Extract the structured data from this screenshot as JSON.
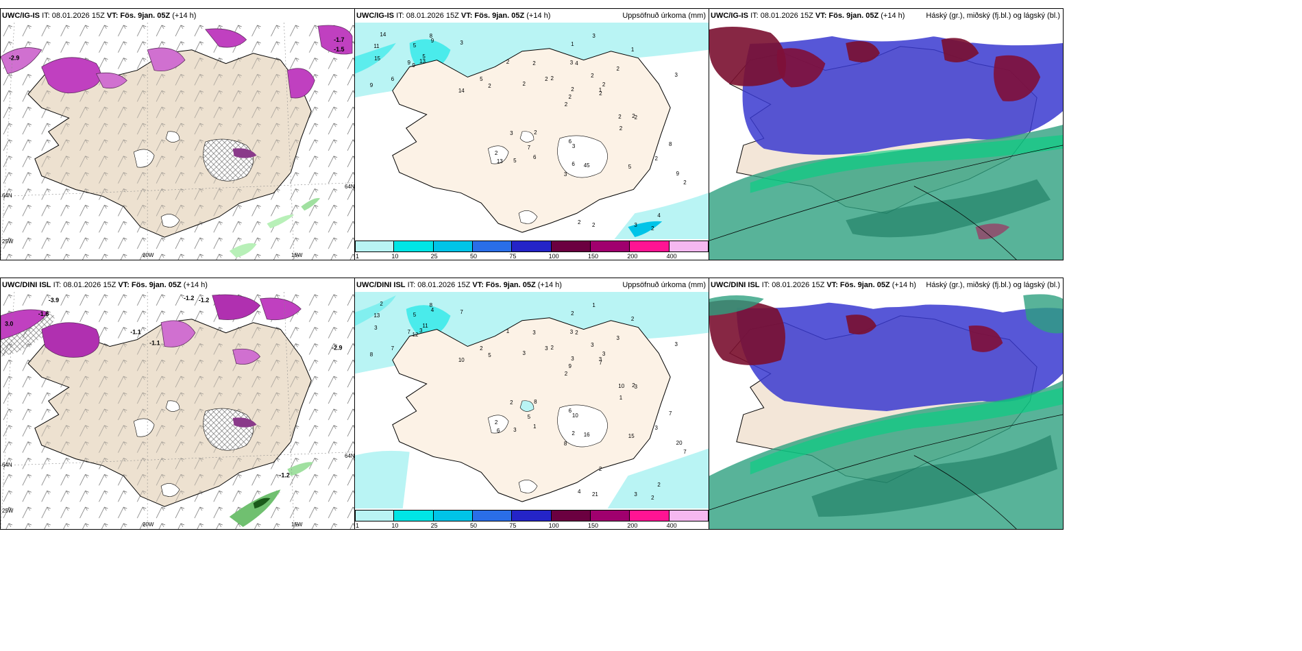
{
  "rows": [
    {
      "model": "UWC/IG-IS",
      "it_label": "IT: 08.01.2026 15Z",
      "vt_label": "VT: Fös. 9jan. 05Z",
      "lead": "(+14 h)",
      "map_labels": {
        "lon_20w": "20W",
        "lon_15w": "15W",
        "lon_25w": "25W",
        "lat_64n_left": "64N",
        "lat_64n_right": "64N"
      },
      "precip_numbers": [
        "9",
        "11",
        "9",
        "9",
        "5",
        "6",
        "8",
        "5",
        "9",
        "13",
        "14",
        "14",
        "15",
        "3",
        "2",
        "2",
        "5",
        "3",
        "2",
        "3",
        "2",
        "2",
        "7",
        "4",
        "2",
        "2",
        "2",
        "1",
        "2",
        "2",
        "3",
        "2",
        "6",
        "2",
        "2",
        "1",
        "2",
        "2",
        "8",
        "2",
        "3",
        "2",
        "2",
        "2",
        "6",
        "5",
        "1",
        "13",
        "3",
        "2",
        "2",
        "2",
        "3",
        "4",
        "2",
        "2",
        "45",
        "6",
        "3",
        "9",
        "5"
      ]
    },
    {
      "model": "UWC/DINI ISL",
      "it_label": "IT: 08.01.2026 15Z",
      "vt_label": "VT: Fös. 9jan. 05Z",
      "lead": "(+14 h)",
      "map_labels": {
        "lon_20w": "20W",
        "lon_15w": "15W",
        "lon_25w": "25W",
        "lat_64n_left": "64N",
        "lat_64n_right": "64N"
      },
      "precip_numbers": [
        "12",
        "13",
        "7",
        "8",
        "11",
        "7",
        "8",
        "5",
        "4",
        "3",
        "2",
        "10",
        "3",
        "7",
        "2",
        "3",
        "3",
        "3",
        "3",
        "2",
        "2",
        "2",
        "5",
        "2",
        "3",
        "3",
        "1",
        "2",
        "5",
        "10",
        "3",
        "9",
        "6",
        "3",
        "3",
        "2",
        "8",
        "3",
        "7",
        "2",
        "1",
        "3",
        "3",
        "1",
        "1",
        "2",
        "3",
        "6",
        "10",
        "7",
        "4",
        "7",
        "8",
        "2",
        "2",
        "21",
        "16",
        "2",
        "3",
        "20",
        "15",
        "2"
      ]
    }
  ],
  "precip_title": "Uppsöfnuð úrkoma (mm)",
  "cloud_title": "Háský (gr.), miðský (fj.bl.) og lágský (bl.)",
  "colorbar": {
    "labels": [
      "1",
      "10",
      "25",
      "50",
      "75",
      "100",
      "150",
      "200",
      "400"
    ],
    "colors": [
      "#b9f4f4",
      "#00e5e5",
      "#00c4e8",
      "#2a6ee8",
      "#2424c8",
      "#6b0040",
      "#a0006e",
      "#ff1493",
      "#f5b8f0"
    ]
  },
  "temp_labels_row1": [
    "-2.9",
    "-1.7",
    "-1.5"
  ],
  "temp_labels_row2": [
    "-3.9",
    "-1.6",
    "-1.2",
    "-1.2",
    "-1.1",
    "-1.1",
    "-2.9",
    "-1.2",
    "3.0"
  ]
}
